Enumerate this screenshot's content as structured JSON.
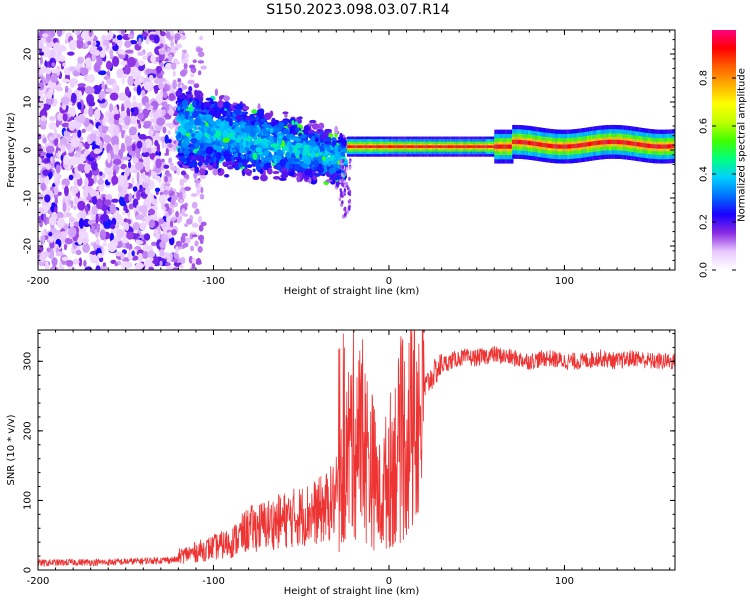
{
  "figure": {
    "title": "S150.2023.098.03.07.R14"
  },
  "chart_data": [
    {
      "type": "heatmap",
      "xlabel": "Height of straight line (km)",
      "ylabel": "Frequency (Hz)",
      "xlim": [
        -200,
        163
      ],
      "ylim": [
        -25,
        25
      ],
      "xticks": [
        -200,
        -100,
        0,
        100
      ],
      "yticks": [
        -20,
        -10,
        0,
        10,
        20
      ],
      "colorbar": {
        "label": "Normalized spectral amplitude",
        "range": [
          0,
          1
        ],
        "ticks": [
          0.0,
          0.2,
          0.4,
          0.6,
          0.8
        ],
        "colors": [
          "#ffffff",
          "#e9c9ff",
          "#8a2be2",
          "#1a00ff",
          "#0070ff",
          "#00d0ff",
          "#00ff80",
          "#40ff00",
          "#c0ff00",
          "#ffff00",
          "#ffb000",
          "#ff6000",
          "#ff0000",
          "#ff0080"
        ]
      },
      "regions": [
        {
          "x": [
            -200,
            -120
          ],
          "freq": [
            -25,
            25
          ],
          "amplitude": 0.15,
          "description_level": "scattered speckle"
        },
        {
          "x": [
            -120,
            -25
          ],
          "freq_center": [
            5,
            -5
          ],
          "amplitude": 0.3
        },
        {
          "x": [
            -25,
            163
          ],
          "freq_center": 1,
          "amplitude": 0.9
        }
      ],
      "grid": false
    },
    {
      "type": "line",
      "xlabel": "Height of straight line (km)",
      "ylabel": "SNR (10 * v/v)",
      "xlim": [
        -200,
        163
      ],
      "ylim": [
        0,
        345
      ],
      "xticks": [
        -200,
        -100,
        0,
        100
      ],
      "yticks": [
        0,
        100,
        200,
        300
      ],
      "color": "#ee3333",
      "grid": false,
      "series": [
        {
          "x": [
            -200,
            -180,
            -160,
            -140,
            -120,
            -100,
            -90,
            -80,
            -70,
            -60,
            -50,
            -40,
            -35,
            -30,
            -25,
            -20,
            -15,
            -10,
            -5,
            0,
            5,
            10,
            15,
            20,
            25,
            30,
            40,
            50,
            60,
            70,
            80,
            90,
            100,
            110,
            120,
            130,
            140,
            150,
            163
          ],
          "y": [
            10,
            11,
            11,
            13,
            15,
            25,
            30,
            45,
            50,
            55,
            60,
            65,
            70,
            80,
            150,
            200,
            180,
            150,
            100,
            140,
            170,
            190,
            220,
            260,
            280,
            295,
            305,
            305,
            310,
            305,
            300,
            305,
            300,
            300,
            305,
            300,
            305,
            300,
            300
          ]
        }
      ]
    }
  ]
}
